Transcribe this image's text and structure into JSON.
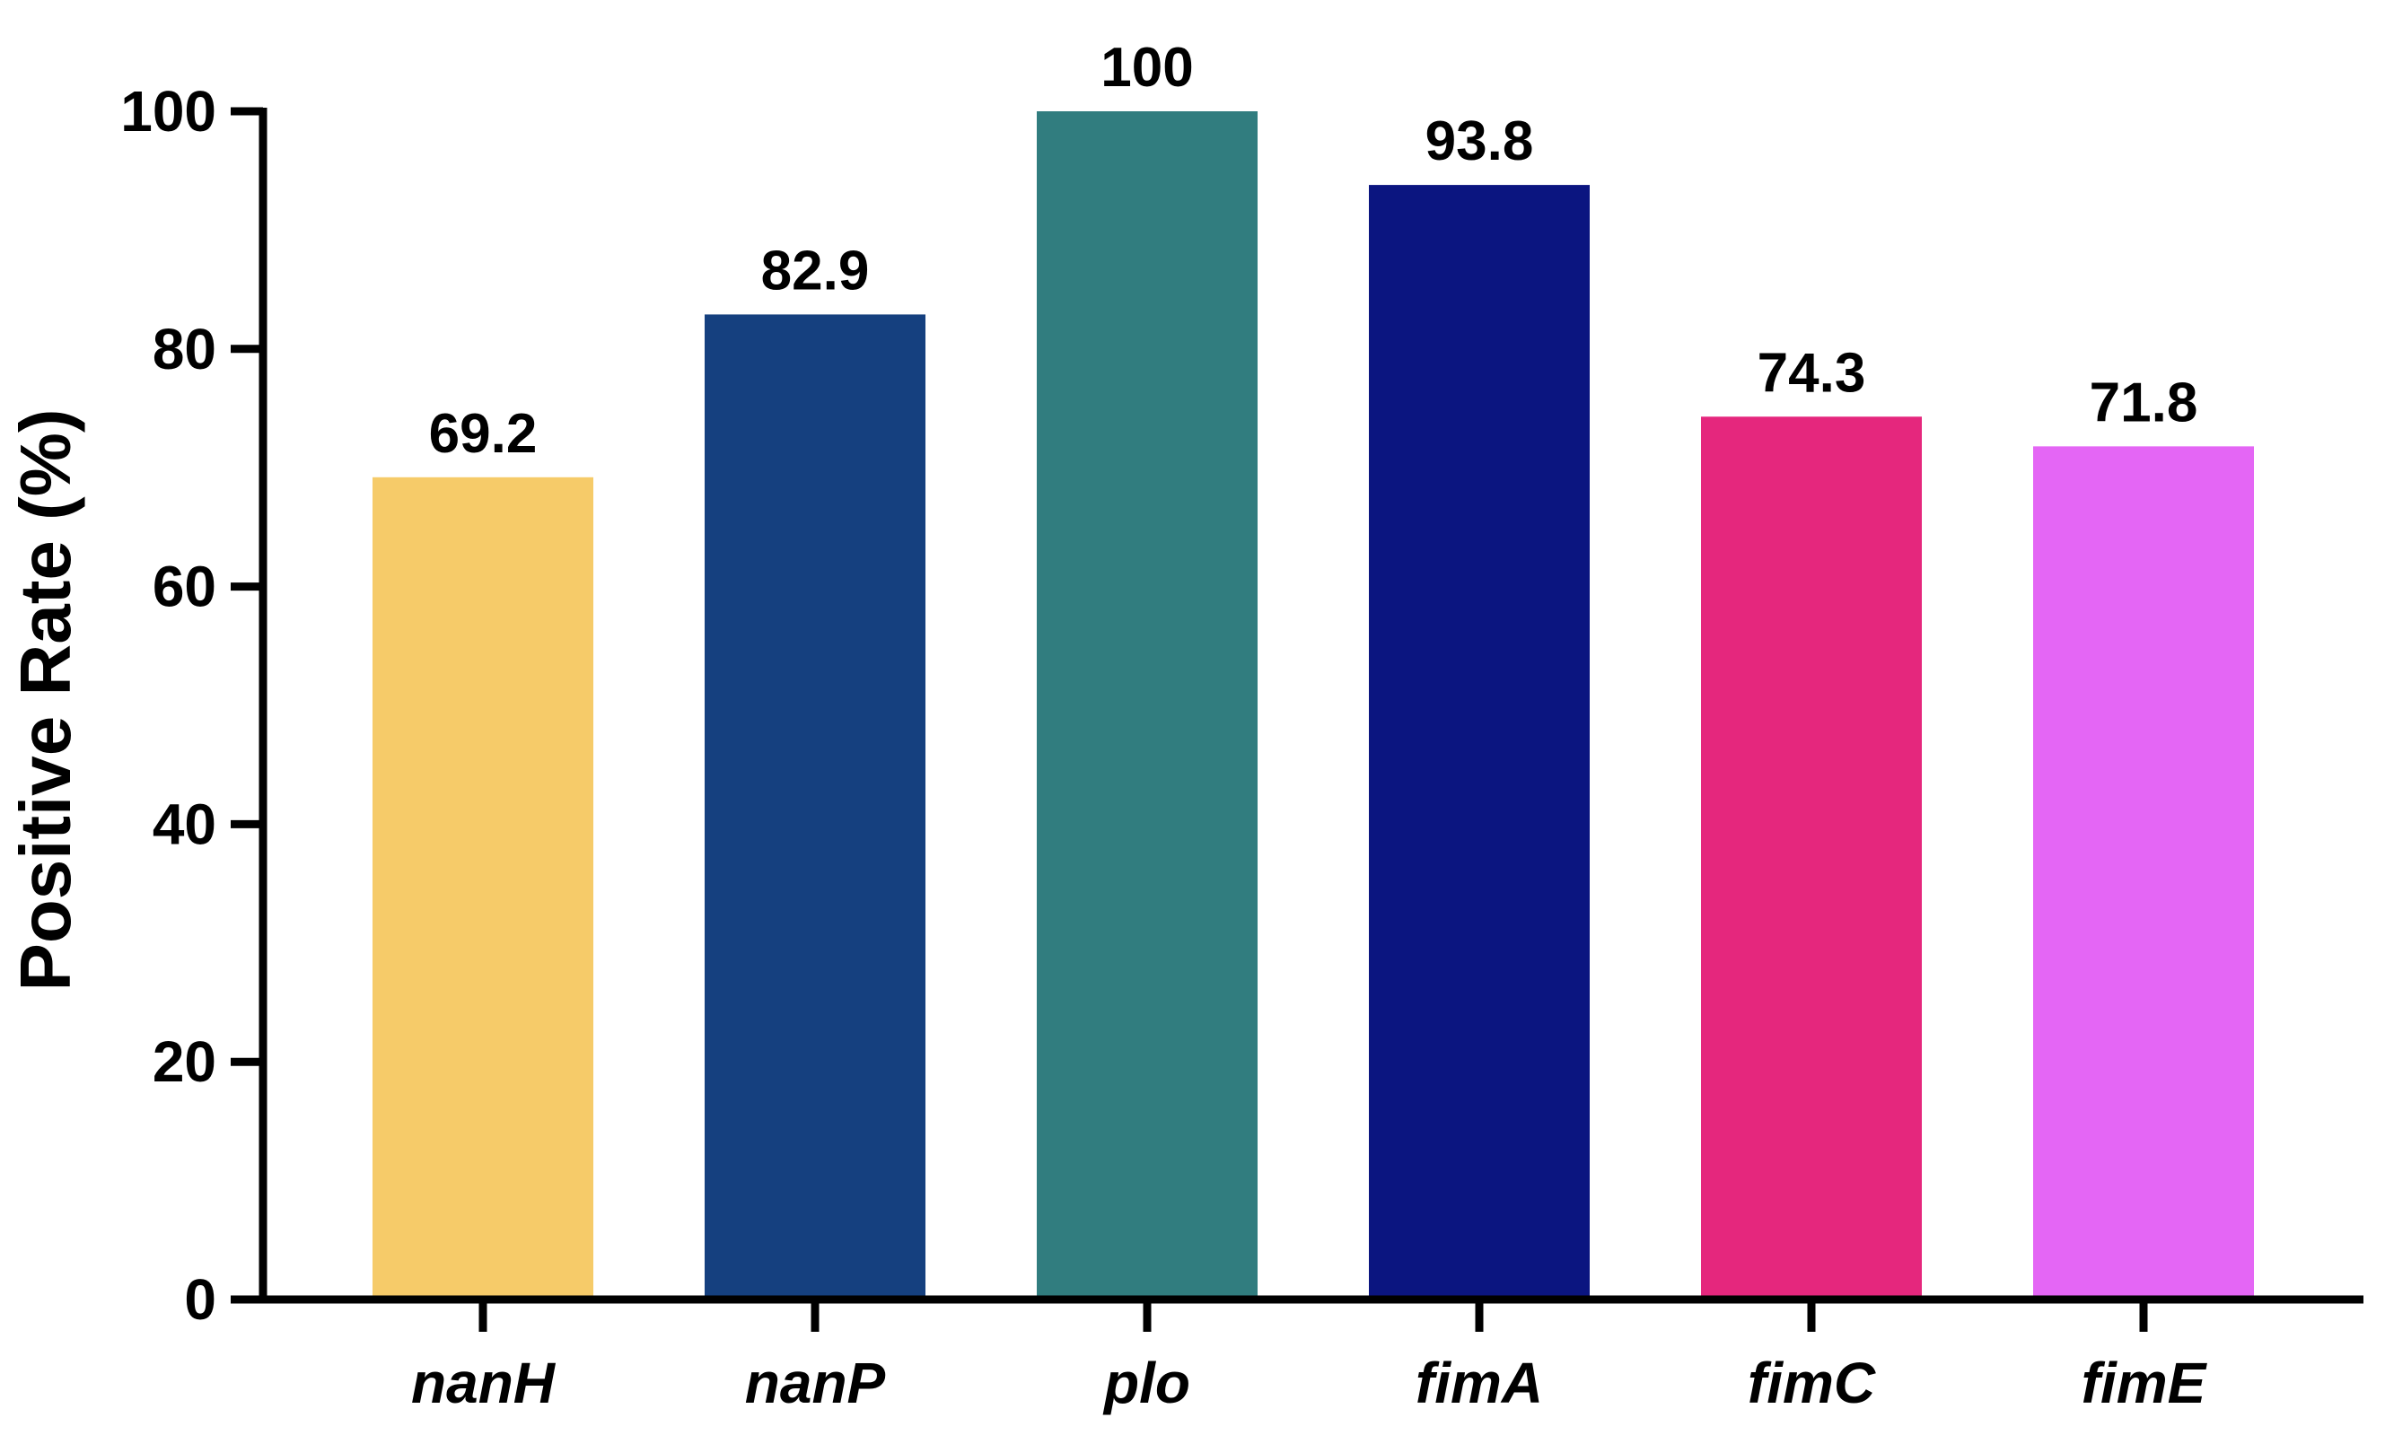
{
  "chart_data": {
    "type": "bar",
    "title": "",
    "xlabel": "",
    "ylabel": "Positive Rate (%)",
    "ylim": [
      0,
      100
    ],
    "yticks": [
      0,
      20,
      40,
      60,
      80,
      100
    ],
    "grid": false,
    "categories": [
      "nanH",
      "nanP",
      "plo",
      "fimA",
      "fimC",
      "fimE"
    ],
    "values": [
      69.2,
      82.9,
      100,
      93.8,
      74.3,
      71.8
    ],
    "data_labels": [
      "69.2",
      "82.9",
      "100",
      "93.8",
      "74.3",
      "71.8"
    ],
    "colors": [
      "#F6CB69",
      "#15407F",
      "#317D7F",
      "#0B1580",
      "#E5277D",
      "#E466F5"
    ]
  }
}
